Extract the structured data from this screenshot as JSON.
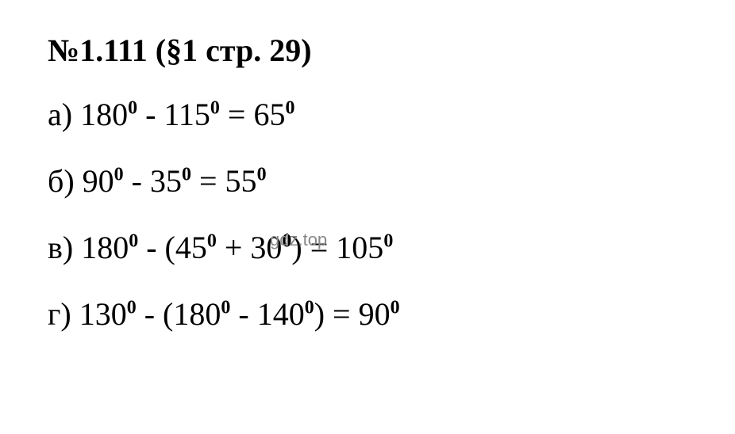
{
  "title": {
    "number": "№1.111",
    "section": "(§1 стр. 29)"
  },
  "equations": {
    "a": {
      "label": "а)",
      "expr": "180⁰ - 115⁰ = 65⁰"
    },
    "b": {
      "label": "б)",
      "expr": "90⁰ - 35⁰ = 55⁰"
    },
    "c": {
      "label": "в)",
      "expr": "180⁰ - (45⁰ + 30⁰) = 105⁰"
    },
    "d": {
      "label": "г)",
      "expr": "130⁰ - (180⁰ - 140⁰) = 90⁰"
    }
  },
  "watermark": "gdz.top",
  "styling": {
    "background_color": "#ffffff",
    "text_color": "#000000",
    "watermark_color": "#888888",
    "title_fontsize": 40,
    "equation_fontsize": 40,
    "degree_fontsize": 24,
    "font_family": "Times New Roman"
  }
}
